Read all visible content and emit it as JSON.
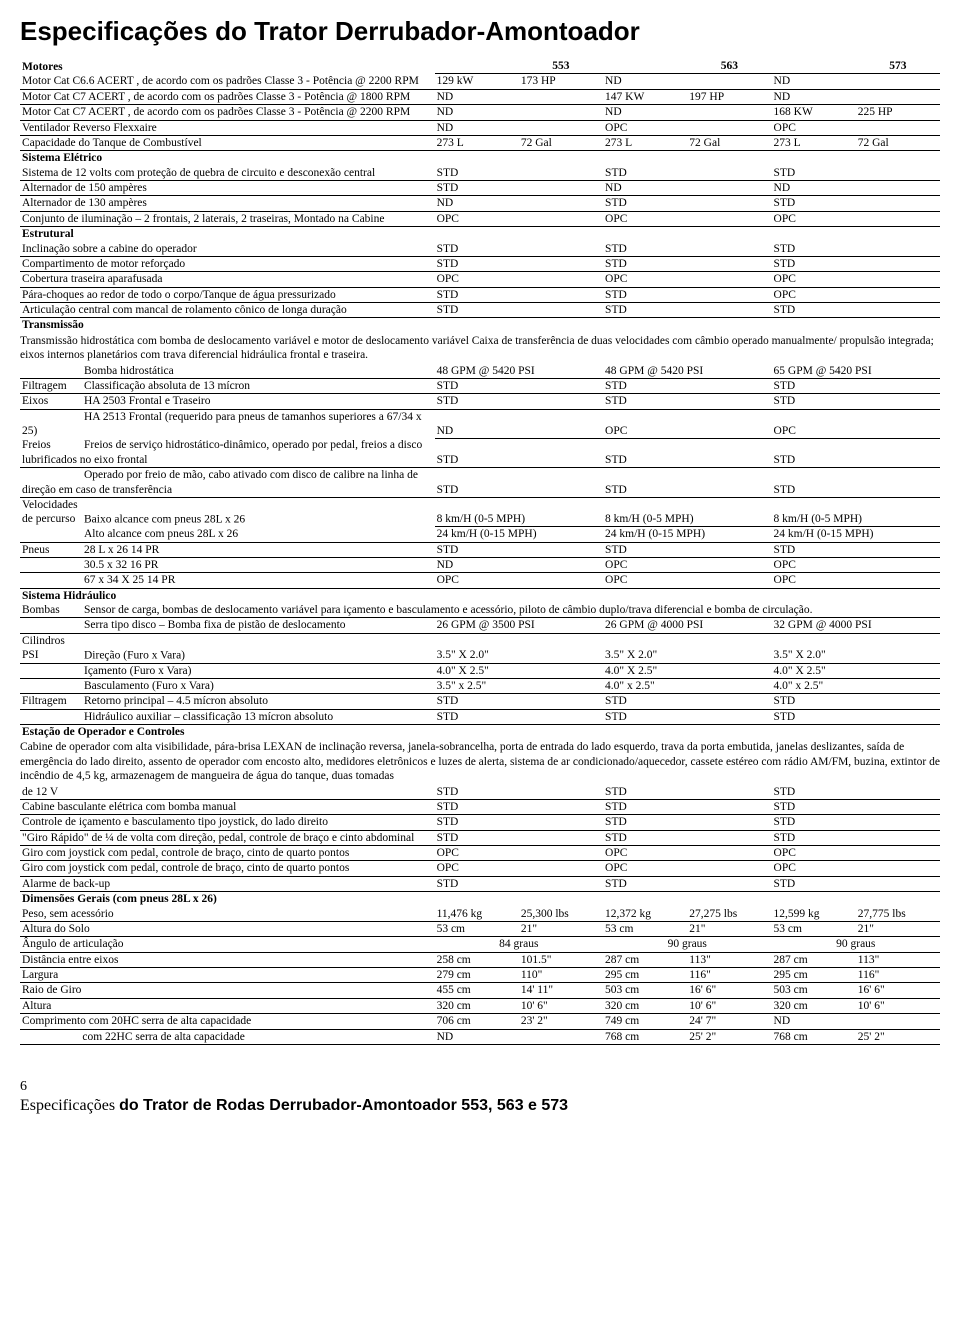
{
  "title": "Especificações do Trator Derrubador-Amontoador",
  "headers": {
    "c1": "553",
    "c2": "563",
    "c3": "573"
  },
  "sections": {
    "motores": {
      "label": "Motores",
      "rows": [
        {
          "l": "Motor Cat C6.6 ACERT , de acordo com os padrões Classe 3 - Potência @ 2200 RPM",
          "c1a": "129 kW",
          "c1b": "173 HP",
          "c2a": "ND",
          "c2b": "",
          "c3a": "ND",
          "c3b": ""
        },
        {
          "l": "Motor Cat C7 ACERT , de acordo com os padrões Classe 3 - Potência @ 1800 RPM",
          "c1a": "ND",
          "c1b": "",
          "c2a": "147 KW",
          "c2b": "197 HP",
          "c3a": "ND",
          "c3b": ""
        },
        {
          "l": "Motor Cat C7 ACERT , de acordo com os padrões Classe 3 - Potência @ 2200 RPM",
          "c1a": "ND",
          "c1b": "",
          "c2a": "ND",
          "c2b": "",
          "c3a": "168 KW",
          "c3b": "225 HP"
        },
        {
          "l": "Ventilador Reverso Flexxaire",
          "c1a": "ND",
          "c1b": "",
          "c2a": "OPC",
          "c2b": "",
          "c3a": "OPC",
          "c3b": ""
        },
        {
          "l": "Capacidade do Tanque de Combustível",
          "c1a": "273 L",
          "c1b": "72 Gal",
          "c2a": "273 L",
          "c2b": "72 Gal",
          "c3a": "273 L",
          "c3b": "72 Gal"
        }
      ]
    },
    "eletrico": {
      "label": "Sistema Elétrico",
      "rows": [
        {
          "l": "Sistema de 12 volts com proteção de quebra de circuito e desconexão central",
          "c1": "STD",
          "c2": "STD",
          "c3": "STD"
        },
        {
          "l": "Alternador de 150 ampères",
          "c1": "STD",
          "c2": "ND",
          "c3": "ND"
        },
        {
          "l": "Alternador de 130 ampères",
          "c1": "ND",
          "c2": "STD",
          "c3": "STD"
        },
        {
          "l": "Conjunto de iluminação – 2 frontais, 2 laterais, 2 traseiras, Montado na Cabine",
          "c1": "OPC",
          "c2": "OPC",
          "c3": "OPC"
        }
      ]
    },
    "estrutural": {
      "label": "Estrutural",
      "rows": [
        {
          "l": "Inclinação sobre a cabine do operador",
          "c1": "STD",
          "c2": "STD",
          "c3": "STD"
        },
        {
          "l": "Compartimento de motor reforçado",
          "c1": "STD",
          "c2": "STD",
          "c3": "STD"
        },
        {
          "l": "Cobertura traseira aparafusada",
          "c1": "OPC",
          "c2": "OPC",
          "c3": "OPC"
        },
        {
          "l": "Pára-choques ao redor de todo o corpo/Tanque de água pressurizado",
          "c1": "STD",
          "c2": "STD",
          "c3": "OPC"
        },
        {
          "l": "Articulação central com mancal de rolamento cônico de longa duração",
          "c1": "STD",
          "c2": "STD",
          "c3": "STD"
        }
      ]
    },
    "transmissao": {
      "label": "Transmissão",
      "para": "Transmissão hidrostática com bomba de deslocamento variável e motor de deslocamento variável Caixa de transferência de duas velocidades com câmbio operado manualmente/ propulsão integrada; eixos internos planetários com trava diferencial hidráulica frontal e traseira.",
      "rows": [
        {
          "pre": "",
          "l": "Bomba hidrostática",
          "c1": "48 GPM @ 5420 PSI",
          "c2": "48 GPM @ 5420 PSI",
          "c3": "65 GPM @ 5420 PSI"
        },
        {
          "pre": "Filtragem",
          "l": "Classificação absoluta de 13 mícron",
          "c1": "STD",
          "c2": "STD",
          "c3": "STD"
        },
        {
          "pre": "Eixos",
          "l": "HA 2503 Frontal e Traseiro",
          "c1": "STD",
          "c2": "STD",
          "c3": "STD"
        },
        {
          "pre": "",
          "l": "HA 2513 Frontal (requerido para pneus de tamanhos superiores a 67/34 x 25)",
          "c1": "ND",
          "c2": "OPC",
          "c3": "OPC",
          "nou2": true
        },
        {
          "pre": "Freios",
          "l": "Freios de serviço hidrostático-dinâmico, operado por pedal, freios a disco lubrificados no eixo frontal",
          "c1": "STD",
          "c2": "STD",
          "c3": "STD"
        },
        {
          "pre": "",
          "l": "Operado por freio de mão, cabo ativado com disco de calibre na linha de direção em caso de transferência",
          "c1": "STD",
          "c2": "STD",
          "c3": "STD"
        },
        {
          "pre": "Velocidades de percurso",
          "l": "Baixo alcance com pneus 28L x 26",
          "c1": "8 km/H (0-5 MPH)",
          "c2": "8 km/H (0-5 MPH)",
          "c3": "8 km/H (0-5 MPH)",
          "nou2": true
        },
        {
          "pre": "",
          "l": "Alto alcance com pneus 28L x 26",
          "c1": "24 km/H (0-15 MPH)",
          "c2": "24 km/H (0-15 MPH)",
          "c3": "24 km/H (0-15 MPH)"
        },
        {
          "pre": "Pneus",
          "l": "28 L x 26 14 PR",
          "c1": "STD",
          "c2": "STD",
          "c3": "STD"
        },
        {
          "pre": "",
          "l": "30.5 x 32 16 PR",
          "c1": "ND",
          "c2": "OPC",
          "c3": "OPC"
        },
        {
          "pre": "",
          "l": "67 x 34 X 25 14 PR",
          "c1": "OPC",
          "c2": "OPC",
          "c3": "OPC"
        }
      ]
    },
    "hidraulico": {
      "label": "Sistema Hidráulico",
      "bombas_pre": "Bombas",
      "bombas": "Sensor de carga, bombas de deslocamento variável para içamento e basculamento e acessório, piloto de câmbio duplo/trava diferencial e bomba de circulação.",
      "rows": [
        {
          "pre": "",
          "l": "Serra tipo disco – Bomba fixa de pistão de deslocamento",
          "c1": "26 GPM @ 3500 PSI",
          "c2": "26 GPM @ 4000 PSI",
          "c3": "32 GPM @ 4000 PSI"
        },
        {
          "pre": "Cilindros PSI",
          "l": "Direção (Furo x Vara)",
          "c1": "3.5\" X 2.0\"",
          "c2": "3.5\" X 2.0\"",
          "c3": "3.5\" X 2.0\""
        },
        {
          "pre": "",
          "l": "Içamento (Furo x Vara)",
          "c1": "4.0\" X 2.5\"",
          "c2": "4.0\" X 2.5\"",
          "c3": "4.0\" X 2.5\""
        },
        {
          "pre": "",
          "l": "Basculamento (Furo x Vara)",
          "c1": "3.5\" x 2.5\"",
          "c2": "4.0\" x 2.5\"",
          "c3": "4.0\" x 2.5\""
        },
        {
          "pre": "Filtragem",
          "l": "Retorno principal – 4.5 mícron absoluto",
          "c1": "STD",
          "c2": "STD",
          "c3": "STD"
        },
        {
          "pre": "",
          "l": "Hidráulico auxiliar – classificação 13 mícron absoluto",
          "c1": "STD",
          "c2": "STD",
          "c3": "STD"
        }
      ]
    },
    "operador": {
      "label": "Estação de Operador e Controles",
      "para": "Cabine de operador com alta visibilidade, pára-brisa LEXAN de inclinação reversa, janela-sobrancelha, porta de entrada do lado esquerdo, trava da porta embutida, janelas deslizantes, saída de emergência do lado direito, assento de operador com encosto alto, medidores eletrônicos e luzes de alerta, sistema de ar condicionado/aquecedor, cassete estéreo com rádio AM/FM, buzina, extintor de incêndio de 4,5 kg, armazenagem de mangueira de água do tanque, duas tomadas",
      "rows": [
        {
          "l": "de 12 V",
          "c1": "STD",
          "c2": "STD",
          "c3": "STD"
        },
        {
          "l": "Cabine basculante elétrica com bomba manual",
          "c1": "STD",
          "c2": "STD",
          "c3": "STD"
        },
        {
          "l": "Controle de içamento e basculamento tipo joystick, do lado direito",
          "c1": "STD",
          "c2": "STD",
          "c3": "STD"
        },
        {
          "l": "\"Giro Rápido\" de ¼ de volta com direção, pedal, controle de braço e cinto abdominal",
          "c1": "STD",
          "c2": "STD",
          "c3": "STD"
        },
        {
          "l": "Giro com joystick com pedal, controle de braço, cinto de quarto pontos",
          "c1": "OPC",
          "c2": "OPC",
          "c3": "OPC"
        },
        {
          "l": "Giro com joystick com pedal, controle de braço, cinto de quarto pontos",
          "c1": "OPC",
          "c2": "OPC",
          "c3": "OPC"
        },
        {
          "l": "Alarme de back-up",
          "c1": "STD",
          "c2": "STD",
          "c3": "STD"
        }
      ]
    },
    "dimensoes": {
      "label": "Dimensões Gerais (com pneus 28L x 26)",
      "rows": [
        {
          "l": "Peso, sem acessório",
          "c1a": "11,476 kg",
          "c1b": "25,300 lbs",
          "c2a": "12,372 kg",
          "c2b": "27,275 lbs",
          "c3a": "12,599 kg",
          "c3b": "27,775 lbs"
        },
        {
          "l": "Altura do Solo",
          "c1a": "53 cm",
          "c1b": "21\"",
          "c2a": "53 cm",
          "c2b": "21\"",
          "c3a": "53 cm",
          "c3b": "21\""
        },
        {
          "l": "Ângulo de articulação",
          "c1a": "84 graus",
          "c1b": "",
          "c2a": "90 graus",
          "c2b": "",
          "c3a": "90 graus",
          "c3b": "",
          "center": true
        },
        {
          "l": "Distância entre eixos",
          "c1a": "258 cm",
          "c1b": "101.5\"",
          "c2a": "287 cm",
          "c2b": "113\"",
          "c3a": "287 cm",
          "c3b": "113\""
        },
        {
          "l": "Largura",
          "c1a": "279 cm",
          "c1b": "110\"",
          "c2a": "295 cm",
          "c2b": "116\"",
          "c3a": "295 cm",
          "c3b": "116\""
        },
        {
          "l": "Raio de Giro",
          "c1a": "455 cm",
          "c1b": "14' 11\"",
          "c2a": "503 cm",
          "c2b": "16' 6\"",
          "c3a": "503 cm",
          "c3b": "16' 6\""
        },
        {
          "l": "Altura",
          "c1a": "320 cm",
          "c1b": "10' 6\"",
          "c2a": "320 cm",
          "c2b": "10' 6\"",
          "c3a": "320 cm",
          "c3b": "10' 6\""
        },
        {
          "l": "Comprimento   com 20HC serra de alta capacidade",
          "c1a": "706 cm",
          "c1b": "23' 2\"",
          "c2a": "749 cm",
          "c2b": "24' 7\"",
          "c3a": "ND",
          "c3b": ""
        },
        {
          "l": "                     com 22HC serra de alta capacidade",
          "c1a": "ND",
          "c1b": "",
          "c2a": "768 cm",
          "c2b": "25' 2\"",
          "c3a": "768 cm",
          "c3b": "25' 2\""
        }
      ]
    }
  },
  "footer": {
    "page": "6",
    "line_plain": "Especificações ",
    "line_bold": "do Trator de Rodas  Derrubador-Amontoador 553, 563 e 573"
  }
}
